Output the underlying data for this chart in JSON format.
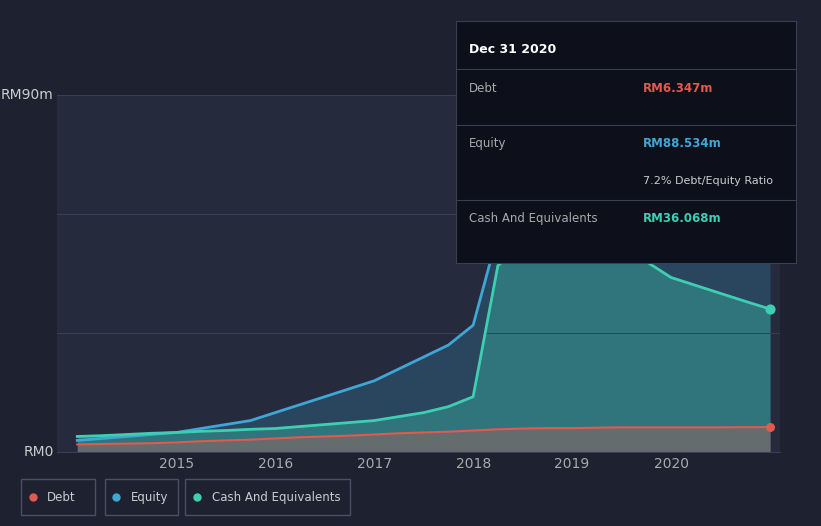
{
  "bg_color": "#1e2130",
  "plot_bg_color": "#252a3d",
  "grid_color": "#3a3f55",
  "debt_color": "#e05a50",
  "equity_color": "#3fa7d6",
  "cash_color": "#3ecfb2",
  "tooltip_bg": "#0d0f1a",
  "tooltip_border": "#3a3f55",
  "years": [
    2014.0,
    2014.25,
    2014.5,
    2014.75,
    2015.0,
    2015.25,
    2015.5,
    2015.75,
    2016.0,
    2016.25,
    2016.5,
    2016.75,
    2017.0,
    2017.25,
    2017.5,
    2017.75,
    2018.0,
    2018.25,
    2018.5,
    2018.75,
    2019.0,
    2019.25,
    2019.5,
    2019.75,
    2020.0,
    2020.25,
    2020.5,
    2020.75,
    2021.0
  ],
  "debt": [
    2.0,
    2.1,
    2.2,
    2.3,
    2.5,
    2.8,
    3.0,
    3.2,
    3.5,
    3.8,
    4.0,
    4.2,
    4.5,
    4.8,
    5.0,
    5.2,
    5.5,
    5.8,
    6.0,
    6.1,
    6.1,
    6.2,
    6.3,
    6.3,
    6.3,
    6.3,
    6.3,
    6.347,
    6.347
  ],
  "equity": [
    3.0,
    3.5,
    4.0,
    4.5,
    5.0,
    6.0,
    7.0,
    8.0,
    10.0,
    12.0,
    14.0,
    16.0,
    18.0,
    21.0,
    24.0,
    27.0,
    32.0,
    55.0,
    65.0,
    68.0,
    70.0,
    73.0,
    76.0,
    79.0,
    80.0,
    82.0,
    84.0,
    86.0,
    88.534
  ],
  "cash": [
    4.0,
    4.2,
    4.5,
    4.8,
    5.0,
    5.3,
    5.5,
    5.8,
    6.0,
    6.5,
    7.0,
    7.5,
    8.0,
    9.0,
    10.0,
    11.5,
    14.0,
    47.0,
    52.0,
    54.0,
    54.0,
    54.5,
    52.0,
    48.0,
    44.0,
    42.0,
    40.0,
    38.0,
    36.068
  ],
  "ylim": [
    0,
    90
  ],
  "xlim": [
    2013.8,
    2021.1
  ],
  "xticks": [
    2015,
    2016,
    2017,
    2018,
    2019,
    2020
  ],
  "ylabel_labels": [
    "RM0",
    "RM90m"
  ],
  "tooltip_date": "Dec 31 2020",
  "tooltip_debt_label": "Debt",
  "tooltip_debt_value": "RM6.347m",
  "tooltip_equity_label": "Equity",
  "tooltip_equity_value": "RM88.534m",
  "tooltip_ratio_label": "7.2% Debt/Equity Ratio",
  "tooltip_cash_label": "Cash And Equivalents",
  "tooltip_cash_value": "RM36.068m",
  "legend_labels": [
    "Debt",
    "Equity",
    "Cash And Equivalents"
  ],
  "legend_colors": [
    "#e05a50",
    "#3fa7d6",
    "#3ecfb2"
  ]
}
